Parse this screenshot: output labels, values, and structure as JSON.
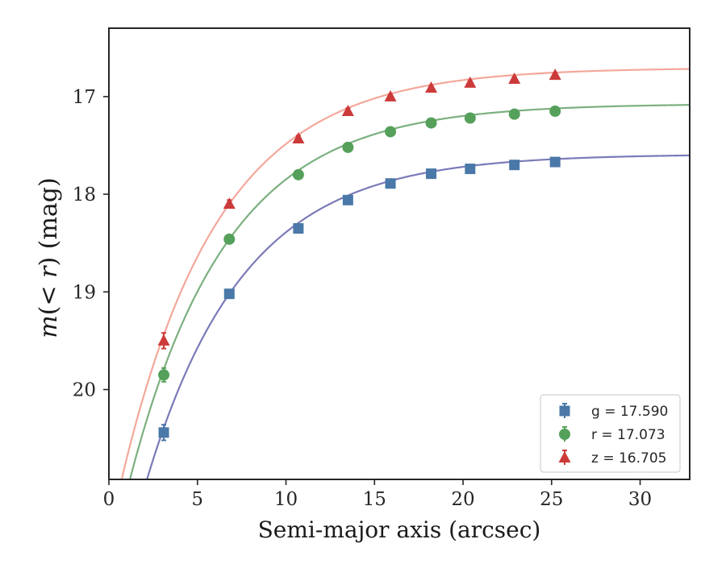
{
  "chart_data": {
    "type": "scatter",
    "xlabel": "Semi-major axis (arcsec)",
    "ylabel": "m(< r) (mag)",
    "xlim": [
      0,
      32.8
    ],
    "ylim": [
      20.92,
      16.3
    ],
    "y_inverted": true,
    "x_ticks": [
      0,
      5,
      10,
      15,
      20,
      25,
      30
    ],
    "y_ticks": [
      17,
      18,
      19,
      20
    ],
    "legend_position": "lower-right",
    "x": [
      3.1,
      6.8,
      10.7,
      13.5,
      15.9,
      18.2,
      20.4,
      22.9,
      25.2
    ],
    "series": [
      {
        "name": "g",
        "legend_label": "g = 17.590",
        "asymptote": 17.59,
        "marker": "square",
        "point_color": "#4a78a8",
        "curve_color": "#7a7ab8",
        "values": [
          20.44,
          19.02,
          18.35,
          18.06,
          17.89,
          17.79,
          17.74,
          17.7,
          17.67
        ],
        "errors": [
          0.08,
          0.03,
          0.02,
          0.02,
          0.02,
          0.02,
          0.02,
          0.02,
          0.02
        ]
      },
      {
        "name": "r",
        "legend_label": "r = 17.073",
        "asymptote": 17.073,
        "marker": "circle",
        "point_color": "#55a05a",
        "curve_color": "#7bb07f",
        "values": [
          19.85,
          18.46,
          17.8,
          17.52,
          17.36,
          17.27,
          17.22,
          17.18,
          17.15
        ],
        "errors": [
          0.07,
          0.03,
          0.02,
          0.02,
          0.02,
          0.02,
          0.02,
          0.02,
          0.02
        ]
      },
      {
        "name": "z",
        "legend_label": "z = 16.705",
        "asymptote": 16.705,
        "marker": "triangle",
        "point_color": "#cc3a3a",
        "curve_color": "#f4a89b",
        "values": [
          19.5,
          18.1,
          17.43,
          17.15,
          17.0,
          16.91,
          16.86,
          16.82,
          16.78
        ],
        "errors": [
          0.08,
          0.04,
          0.03,
          0.03,
          0.02,
          0.02,
          0.02,
          0.02,
          0.02
        ]
      }
    ]
  }
}
